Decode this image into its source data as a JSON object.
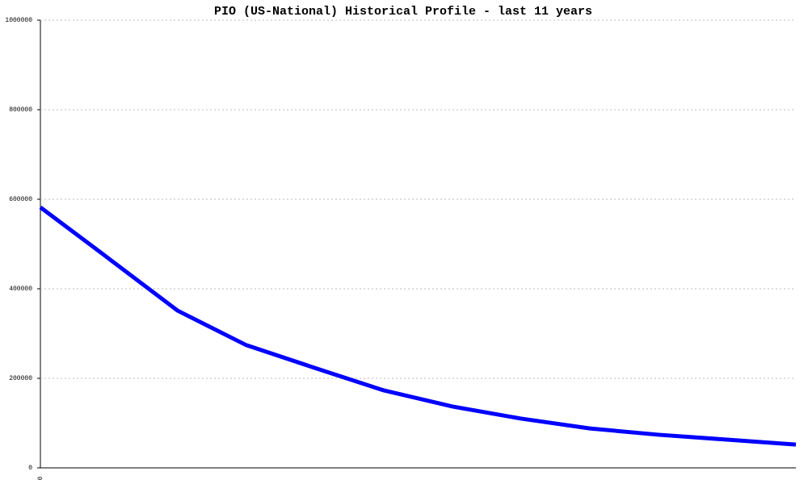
{
  "chart_data": {
    "type": "line",
    "title": "PIO (US-National) Historical Profile - last 11 years",
    "categories": [
      "0",
      null,
      null,
      null,
      null,
      null,
      null,
      null,
      null,
      null,
      null,
      null
    ],
    "values": [
      582000,
      467000,
      351000,
      274000,
      223000,
      173000,
      137000,
      110000,
      88000,
      74000,
      63000,
      52000
    ],
    "color": "#0000ff",
    "ylim": [
      0,
      1000000
    ],
    "yticks": [
      0,
      200000,
      400000,
      600000,
      800000,
      1000000
    ],
    "grid": true
  }
}
